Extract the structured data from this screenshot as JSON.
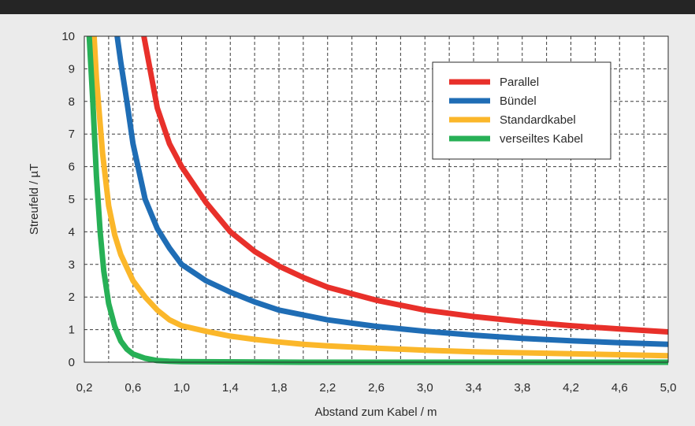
{
  "chart_data": {
    "type": "line",
    "title": "",
    "xlabel": "Abstand zum Kabel / m",
    "ylabel": "Streufeld / µT",
    "xlim": [
      0.2,
      5.0
    ],
    "ylim": [
      0,
      10
    ],
    "x_ticks": [
      0.2,
      0.6,
      1.0,
      1.4,
      1.8,
      2.2,
      2.6,
      3.0,
      3.4,
      3.8,
      4.2,
      4.6,
      5.0
    ],
    "x_tick_labels": [
      "0,2",
      "0,6",
      "1,0",
      "1,4",
      "1,8",
      "2,2",
      "2,6",
      "3,0",
      "3,4",
      "3,8",
      "4,2",
      "4,6",
      "5,0"
    ],
    "y_ticks": [
      0,
      1,
      2,
      3,
      4,
      5,
      6,
      7,
      8,
      9,
      10
    ],
    "y_tick_labels": [
      "0",
      "1",
      "2",
      "3",
      "4",
      "5",
      "6",
      "7",
      "8",
      "9",
      "10"
    ],
    "grid": true,
    "legend_position": "top-right",
    "series": [
      {
        "name": "Parallel",
        "color": "#e8302a",
        "x": [
          0.69,
          0.8,
          0.9,
          1.0,
          1.2,
          1.4,
          1.6,
          1.8,
          2.0,
          2.2,
          2.6,
          3.0,
          3.4,
          3.8,
          4.2,
          4.6,
          5.0
        ],
        "y": [
          10.0,
          7.8,
          6.7,
          6.0,
          4.9,
          4.0,
          3.4,
          2.95,
          2.6,
          2.3,
          1.9,
          1.6,
          1.4,
          1.25,
          1.12,
          1.02,
          0.93
        ]
      },
      {
        "name": "Bündel",
        "color": "#1f6db5",
        "x": [
          0.47,
          0.5,
          0.55,
          0.6,
          0.7,
          0.8,
          0.9,
          1.0,
          1.2,
          1.4,
          1.6,
          1.8,
          2.0,
          2.2,
          2.6,
          3.0,
          3.4,
          3.8,
          4.2,
          4.6,
          5.0
        ],
        "y": [
          10.0,
          9.2,
          8.0,
          6.7,
          5.0,
          4.1,
          3.5,
          3.0,
          2.5,
          2.15,
          1.85,
          1.6,
          1.45,
          1.3,
          1.1,
          0.95,
          0.83,
          0.73,
          0.66,
          0.6,
          0.55
        ]
      },
      {
        "name": "Standardkabel",
        "color": "#fbb72a",
        "x": [
          0.28,
          0.3,
          0.35,
          0.4,
          0.45,
          0.5,
          0.6,
          0.7,
          0.8,
          0.9,
          1.0,
          1.2,
          1.4,
          1.6,
          1.8,
          2.0,
          2.2,
          2.6,
          3.0,
          3.4,
          3.8,
          4.2,
          4.6,
          5.0
        ],
        "y": [
          10.0,
          8.7,
          6.4,
          4.8,
          3.9,
          3.3,
          2.5,
          2.0,
          1.6,
          1.3,
          1.12,
          0.95,
          0.8,
          0.7,
          0.62,
          0.55,
          0.5,
          0.43,
          0.37,
          0.32,
          0.29,
          0.26,
          0.23,
          0.2
        ]
      },
      {
        "name": "verseiltes Kabel",
        "color": "#27b056",
        "x": [
          0.24,
          0.27,
          0.3,
          0.33,
          0.36,
          0.4,
          0.45,
          0.5,
          0.55,
          0.6,
          0.7,
          0.8,
          0.9,
          1.0,
          1.5,
          2.0,
          3.0,
          4.0,
          5.0
        ],
        "y": [
          10.0,
          8.0,
          5.7,
          4.0,
          2.8,
          1.8,
          1.1,
          0.65,
          0.4,
          0.25,
          0.12,
          0.05,
          0.03,
          0.02,
          0.01,
          0.0,
          0.0,
          0.0,
          0.0
        ]
      }
    ]
  }
}
